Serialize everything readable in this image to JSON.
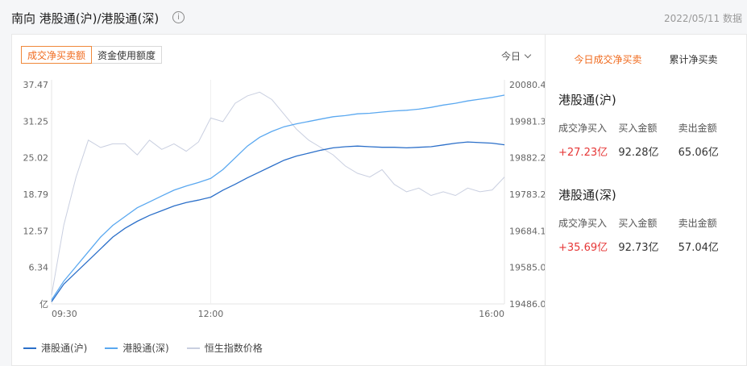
{
  "header": {
    "title": "南向 港股通(沪)/港股通(深)",
    "info_icon": "info-icon",
    "date": "2022/05/11 数据"
  },
  "left": {
    "tabs": [
      {
        "label": "成交净买卖额",
        "active": true
      },
      {
        "label": "资金使用额度",
        "active": false
      }
    ],
    "period": "今日",
    "legend": [
      {
        "label": "港股通(沪)",
        "color": "#2b6fc9"
      },
      {
        "label": "港股通(深)",
        "color": "#5aa8f0"
      },
      {
        "label": "恒生指数价格",
        "color": "#c9cfe0"
      }
    ]
  },
  "chart_data": {
    "type": "line",
    "x_ticks": [
      "09:30",
      "12:00",
      "16:00"
    ],
    "y_left_ticks": [
      "37.47",
      "31.25",
      "25.02",
      "18.79",
      "12.57",
      "6.34",
      "亿"
    ],
    "y_right_ticks": [
      "20080.4",
      "19981.3",
      "19882.2",
      "19783.2",
      "19684.1",
      "19585.0",
      "19486.0"
    ],
    "y_left_range": [
      0.12,
      37.47
    ],
    "y_right_range": [
      19486.0,
      20080.4
    ],
    "x": [
      "09:30",
      "09:40",
      "09:50",
      "10:00",
      "10:10",
      "10:20",
      "10:30",
      "10:40",
      "10:50",
      "11:00",
      "11:10",
      "11:20",
      "11:30",
      "12:00",
      "12:10",
      "12:20",
      "12:30",
      "12:40",
      "12:50",
      "13:00",
      "13:10",
      "13:20",
      "13:30",
      "13:40",
      "13:50",
      "14:00",
      "14:10",
      "14:20",
      "14:30",
      "14:40",
      "14:50",
      "15:00",
      "15:10",
      "15:20",
      "15:30",
      "15:40",
      "15:50",
      "16:00"
    ],
    "series": [
      {
        "name": "港股通(沪)",
        "axis": "left",
        "color": "#2b6fc9",
        "values": [
          0.5,
          3.5,
          5.5,
          7.5,
          9.5,
          11.5,
          13.0,
          14.2,
          15.2,
          16.0,
          16.8,
          17.4,
          17.8,
          18.3,
          19.5,
          20.5,
          21.6,
          22.6,
          23.6,
          24.6,
          25.3,
          25.8,
          26.3,
          26.7,
          26.9,
          27.0,
          26.9,
          26.8,
          26.8,
          26.7,
          26.8,
          26.9,
          27.2,
          27.5,
          27.7,
          27.6,
          27.5,
          27.23
        ]
      },
      {
        "name": "港股通(深)",
        "axis": "left",
        "color": "#5aa8f0",
        "values": [
          0.8,
          4.0,
          6.5,
          9.0,
          11.5,
          13.5,
          15.0,
          16.5,
          17.5,
          18.5,
          19.5,
          20.2,
          20.8,
          21.5,
          23.0,
          25.0,
          27.0,
          28.5,
          29.5,
          30.3,
          30.8,
          31.2,
          31.6,
          32.0,
          32.2,
          32.5,
          32.6,
          32.8,
          33.0,
          33.1,
          33.3,
          33.6,
          34.0,
          34.3,
          34.7,
          35.0,
          35.3,
          35.69
        ]
      },
      {
        "name": "恒生指数价格",
        "axis": "right",
        "color": "#c9cfe0",
        "values": [
          19510,
          19700,
          19830,
          19930,
          19910,
          19920,
          19920,
          19890,
          19930,
          19905,
          19920,
          19900,
          19925,
          19990,
          19980,
          20030,
          20050,
          20060,
          20040,
          20000,
          19960,
          19930,
          19910,
          19890,
          19860,
          19840,
          19830,
          19850,
          19810,
          19790,
          19800,
          19780,
          19790,
          19780,
          19800,
          19790,
          19795,
          19830
        ]
      }
    ]
  },
  "right": {
    "tabs": [
      {
        "label": "今日成交净买卖",
        "active": true
      },
      {
        "label": "累计净买卖",
        "active": false
      }
    ],
    "sections": [
      {
        "title": "港股通(沪)",
        "stats": [
          {
            "label": "成交净买入",
            "value": "+27.23亿",
            "up": true
          },
          {
            "label": "买入金额",
            "value": "92.28亿",
            "up": false
          },
          {
            "label": "卖出金额",
            "value": "65.06亿",
            "up": false
          }
        ]
      },
      {
        "title": "港股通(深)",
        "stats": [
          {
            "label": "成交净买入",
            "value": "+35.69亿",
            "up": true
          },
          {
            "label": "买入金额",
            "value": "92.73亿",
            "up": false
          },
          {
            "label": "卖出金额",
            "value": "57.04亿",
            "up": false
          }
        ]
      }
    ]
  }
}
